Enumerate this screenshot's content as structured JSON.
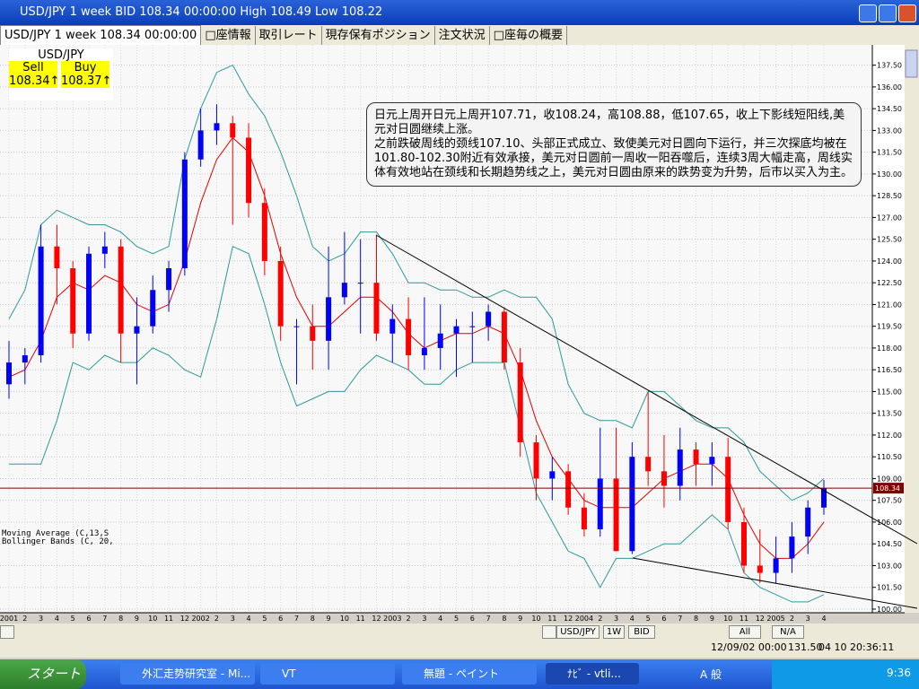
{
  "window": {
    "title": "USD/JPY 1 week BID 108.34 00:00:00 High 108.49 Low 108.22",
    "tabs": [
      "USD/JPY 1 week 108.34 00:00:00",
      "□座情報",
      "取引レート",
      "現存保有ポジション",
      "注文状況",
      "□座毎の概要"
    ],
    "price_box": {
      "symbol": "USD/JPY",
      "sell_label": "Sell",
      "buy_label": "Buy",
      "sell": "108.34↑",
      "buy": "108.37↑"
    },
    "note": [
      "日元上周开日元上周开107.71，收108.24，高108.88，低107.65，收上下影线短阳线,美元对日圆继续上涨。",
      "之前跌破周线的颈线107.10、头部正式成立、致使美元对日圆向下运行，并三次探底均被在101.80-102.30附近有效承接，美元对日圆前一周收一阳吞噬后，连续3周大幅走高，周线实体有效地站在颈线和长期趋势线之上，美元对日圆由原来的跌势变为升势，后市以买入为主。"
    ],
    "indicators": [
      "Moving Average (C,13,S",
      "Bollinger Bands (C, 20,"
    ],
    "toolbar": [
      "USD/JPY",
      "1W",
      "BID",
      "All",
      "N/A"
    ],
    "status": [
      "12/09/02 00:00",
      "131.50",
      "04 10 20:36:11"
    ]
  },
  "taskbar": {
    "start": "スタート",
    "items": [
      "外汇走势研究室 - Mi...",
      "VT",
      "無題 - ペイント",
      "ﾅﾋﾞ - vtli..."
    ],
    "ime": "A 般",
    "clock": "9:36"
  },
  "chart_data": {
    "type": "candlestick",
    "categories": [
      "2001",
      "2",
      "3",
      "4",
      "5",
      "6",
      "7",
      "8",
      "9",
      "10",
      "11",
      "12",
      "2002",
      "2",
      "3",
      "4",
      "5",
      "6",
      "7",
      "8",
      "9",
      "10",
      "11",
      "12",
      "2003",
      "2",
      "3",
      "4",
      "5",
      "6",
      "7",
      "8",
      "9",
      "10",
      "11",
      "12",
      "2004",
      "2",
      "3",
      "4",
      "5",
      "6",
      "7",
      "8",
      "9",
      "10",
      "11",
      "12",
      "2005",
      "2",
      "3",
      "4"
    ],
    "open": [
      115.5,
      117,
      117.5,
      125,
      123.5,
      119,
      124.5,
      125,
      119,
      119.5,
      122,
      123.5,
      131,
      133,
      133.5,
      132.5,
      128,
      124,
      119.5,
      119.5,
      118.5,
      121.5,
      122.5,
      122.5,
      119,
      120,
      117.5,
      118,
      119,
      119.5,
      119.5,
      120.5,
      117,
      111.5,
      109,
      109.5,
      107,
      105.5,
      109,
      104,
      110.5,
      109.5,
      108.5,
      111,
      110,
      110.5,
      106,
      103,
      102.5,
      103.5,
      105,
      107
    ],
    "high": [
      118.5,
      118,
      126.5,
      126.5,
      124,
      125,
      126,
      125.5,
      121.5,
      123,
      124,
      131.5,
      134.5,
      134.8,
      134,
      133.5,
      129,
      125,
      120,
      121,
      125,
      126,
      125.5,
      125.8,
      121,
      121.5,
      121.5,
      121,
      120,
      120.5,
      121,
      120.8,
      118,
      112,
      110.5,
      110,
      108,
      112.5,
      112.5,
      111.5,
      115,
      112,
      112.5,
      111.5,
      111.5,
      111.8,
      107,
      105.5,
      105,
      106,
      107.5,
      108.9
    ],
    "low": [
      114.5,
      115.5,
      117,
      121,
      118,
      118.5,
      123.5,
      117,
      115.5,
      119,
      120.5,
      123,
      130.5,
      132,
      126.5,
      127,
      123,
      118.5,
      115.5,
      116.5,
      116.5,
      121,
      119,
      118.5,
      117,
      116.5,
      116.5,
      116.5,
      116,
      117,
      118.5,
      116.5,
      110.5,
      107.5,
      107.5,
      106.5,
      105,
      105,
      104,
      103.8,
      108.5,
      107,
      107.5,
      108.5,
      108.5,
      105.5,
      102.5,
      101.8,
      101.8,
      102.5,
      103.8,
      106.5
    ],
    "close": [
      117,
      117.5,
      125,
      123.5,
      119,
      124.5,
      125,
      119,
      119.5,
      122,
      123.5,
      131,
      133,
      133.5,
      132.5,
      128,
      124,
      119.5,
      119.5,
      118.5,
      121.5,
      122.5,
      122.5,
      119,
      120,
      117.5,
      118,
      119,
      119.5,
      119.5,
      120.5,
      117,
      111.5,
      109,
      109.5,
      107,
      105.5,
      109,
      104,
      110.5,
      109.5,
      108.5,
      111,
      110,
      110.5,
      106,
      103,
      102.5,
      103.5,
      105,
      107,
      108.34
    ],
    "up_color": "#0000ff",
    "down_color": "#ff0000",
    "moving_average": {
      "color": "#e00000",
      "values": [
        116,
        116.5,
        118.5,
        121.5,
        122.5,
        122,
        123,
        122.5,
        121,
        120.5,
        121,
        124,
        128,
        131,
        132.5,
        131.5,
        128.5,
        124.5,
        121.5,
        119.5,
        119.5,
        120.5,
        121.5,
        121.5,
        120.5,
        119,
        118,
        118.5,
        119,
        119,
        119.5,
        119,
        116.5,
        113,
        110.5,
        109,
        107.5,
        107,
        107,
        107,
        108,
        109,
        109.5,
        110,
        110,
        109,
        106.5,
        104.5,
        103.5,
        103.5,
        104.5,
        106
      ]
    },
    "bollinger_upper": {
      "color": "#2a9a9a",
      "values": [
        120,
        122,
        126.5,
        127.5,
        127,
        126.5,
        126.5,
        126,
        125,
        124.5,
        125,
        131,
        134.5,
        137,
        137.5,
        135.5,
        134,
        131.5,
        128.5,
        125,
        124,
        124.5,
        126,
        126,
        124.5,
        122.5,
        122.5,
        122,
        122,
        121.5,
        121.5,
        122,
        121.5,
        121.5,
        120,
        115.5,
        113.5,
        113,
        113,
        112.5,
        115,
        115,
        114,
        113,
        112.5,
        112.5,
        111.5,
        109.5,
        108.5,
        107.5,
        108,
        109
      ]
    },
    "bollinger_lower": {
      "color": "#2a9a9a",
      "values": [
        110,
        110,
        110,
        113,
        117,
        116.5,
        117.5,
        117,
        117,
        118,
        117.5,
        116.5,
        116,
        120,
        125,
        124.5,
        121,
        117,
        114,
        114.5,
        115,
        115,
        116.5,
        117.5,
        117,
        116.5,
        115.5,
        115.5,
        116.5,
        117,
        117,
        117,
        112.5,
        108,
        106,
        104,
        103.5,
        101.5,
        103.5,
        103.5,
        104,
        104.5,
        104.5,
        105.5,
        106.5,
        105.5,
        102.5,
        101.5,
        101,
        100.5,
        100.5,
        101
      ]
    },
    "current_price": 108.34,
    "current_price_color": "#800000",
    "ylim": [
      99.75,
      138.9
    ],
    "yticks": [
      {
        "value": 137.5,
        "label": "137.50"
      },
      {
        "value": 136,
        "label": "136.00"
      },
      {
        "value": 134.5,
        "label": "134.50"
      },
      {
        "value": 133,
        "label": "133.00"
      },
      {
        "value": 131.5,
        "label": "131.50"
      },
      {
        "value": 130,
        "label": "130.00"
      },
      {
        "value": 128.5,
        "label": "128.50"
      },
      {
        "value": 127,
        "label": "127.00"
      },
      {
        "value": 125.5,
        "label": "125.50"
      },
      {
        "value": 124,
        "label": "124.00"
      },
      {
        "value": 122.5,
        "label": "122.50"
      },
      {
        "value": 121,
        "label": "121.00"
      },
      {
        "value": 119.5,
        "label": "119.50"
      },
      {
        "value": 118,
        "label": "118.00"
      },
      {
        "value": 116.5,
        "label": "116.50"
      },
      {
        "value": 115,
        "label": "115.00"
      },
      {
        "value": 113.5,
        "label": "113.50"
      },
      {
        "value": 112,
        "label": "112.00"
      },
      {
        "value": 110.5,
        "label": "110.50"
      },
      {
        "value": 109,
        "label": "109.00"
      },
      {
        "value": 107.5,
        "label": "107.50"
      },
      {
        "value": 106,
        "label": "106.00"
      },
      {
        "value": 104.5,
        "label": "104.50"
      },
      {
        "value": 103,
        "label": "103.00"
      },
      {
        "value": 101.5,
        "label": "101.50"
      },
      {
        "value": 100,
        "label": "100.00"
      }
    ],
    "grid": true
  }
}
